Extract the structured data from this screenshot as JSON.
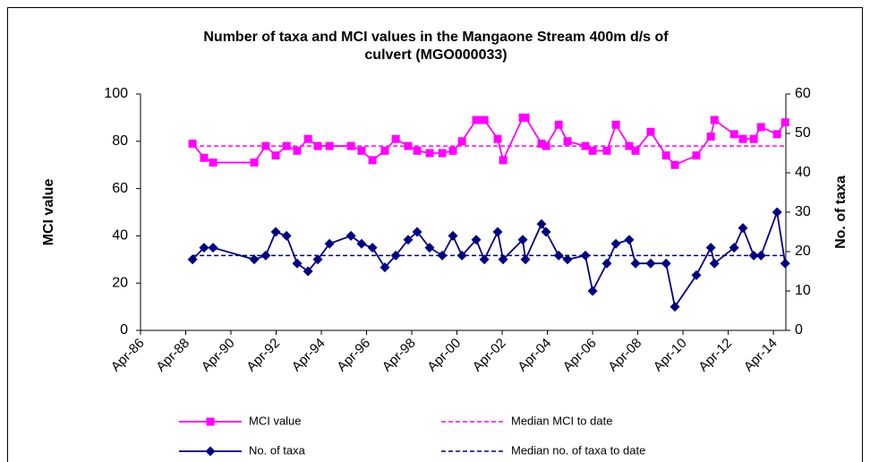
{
  "chart_data": {
    "type": "line",
    "title": [
      "Number of taxa and MCI values in the Mangaone Stream 400m d/s of",
      "culvert (MGO000033)"
    ],
    "y_label": "MCI value",
    "y2_label": "No. of taxa",
    "x": [
      1988.55,
      1989.06,
      1989.46,
      1991.28,
      1991.79,
      1992.23,
      1992.71,
      1993.18,
      1993.66,
      1994.09,
      1994.61,
      1995.56,
      1996.03,
      1996.51,
      1997.06,
      1997.54,
      1998.09,
      1998.49,
      1999.04,
      1999.6,
      2000.07,
      2000.47,
      2001.1,
      2001.46,
      2002.05,
      2002.29,
      2003.16,
      2003.28,
      2003.99,
      2004.19,
      2004.75,
      2005.14,
      2005.93,
      2006.25,
      2006.88,
      2007.28,
      2007.87,
      2008.15,
      2008.82,
      2009.5,
      2009.89,
      2010.84,
      2011.48,
      2011.64,
      2012.51,
      2012.9,
      2013.38,
      2013.7,
      2014.41,
      2014.77
    ],
    "series": [
      {
        "name": "MCI value",
        "color": "#ff00ff",
        "marker": "square",
        "values": [
          79,
          73,
          71,
          71,
          78,
          74,
          78,
          76,
          81,
          78,
          78,
          78,
          76,
          72,
          76,
          81,
          78,
          76,
          75,
          75,
          76,
          80,
          89,
          89,
          81,
          72,
          90,
          90,
          79,
          78,
          87,
          80,
          78,
          76,
          76,
          87,
          78,
          76,
          84,
          74,
          70,
          74,
          82,
          89,
          83,
          81,
          81,
          86,
          83,
          88
        ]
      },
      {
        "name": "Median MCI to date",
        "color": "#ff00ff",
        "dashed": true,
        "x": [
          1988.55,
          2014.77
        ],
        "values": [
          78,
          78
        ]
      },
      {
        "name": "No. of taxa",
        "color": "#000080",
        "marker": "diamond",
        "axis": "y2",
        "values": [
          18,
          21,
          21,
          18,
          19,
          25,
          24,
          17,
          15,
          18,
          22,
          24,
          22,
          21,
          16,
          19,
          23,
          25,
          21,
          19,
          24,
          19,
          23,
          18,
          25,
          18,
          23,
          18,
          27,
          25,
          19,
          18,
          19,
          10,
          17,
          22,
          23,
          17,
          17,
          17,
          6,
          14,
          21,
          17,
          21,
          26,
          19,
          19,
          30,
          17
        ]
      },
      {
        "name": "Median no. of taxa to date",
        "color": "#000080",
        "dashed": true,
        "axis": "y2",
        "x": [
          1988.55,
          2014.77
        ],
        "values": [
          19,
          19
        ]
      }
    ],
    "xlim": [
      1986.25,
      2014.8
    ],
    "xticks": [
      {
        "value": 1986.25,
        "label": "Apr-86"
      },
      {
        "value": 1988.25,
        "label": "Apr-88"
      },
      {
        "value": 1990.25,
        "label": "Apr-90"
      },
      {
        "value": 1992.25,
        "label": "Apr-92"
      },
      {
        "value": 1994.25,
        "label": "Apr-94"
      },
      {
        "value": 1996.25,
        "label": "Apr-96"
      },
      {
        "value": 1998.25,
        "label": "Apr-98"
      },
      {
        "value": 2000.25,
        "label": "Apr-00"
      },
      {
        "value": 2002.25,
        "label": "Apr-02"
      },
      {
        "value": 2004.25,
        "label": "Apr-04"
      },
      {
        "value": 2006.25,
        "label": "Apr-06"
      },
      {
        "value": 2008.25,
        "label": "Apr-08"
      },
      {
        "value": 2010.25,
        "label": "Apr-10"
      },
      {
        "value": 2012.25,
        "label": "Apr-12"
      },
      {
        "value": 2014.25,
        "label": "Apr-14"
      }
    ],
    "ylim": [
      0,
      100
    ],
    "yticks": [
      0,
      20,
      40,
      60,
      80,
      100
    ],
    "y2lim": [
      0,
      60
    ],
    "y2ticks": [
      0,
      10,
      20,
      30,
      40,
      50,
      60
    ],
    "grid": false,
    "legend": "bottom"
  }
}
